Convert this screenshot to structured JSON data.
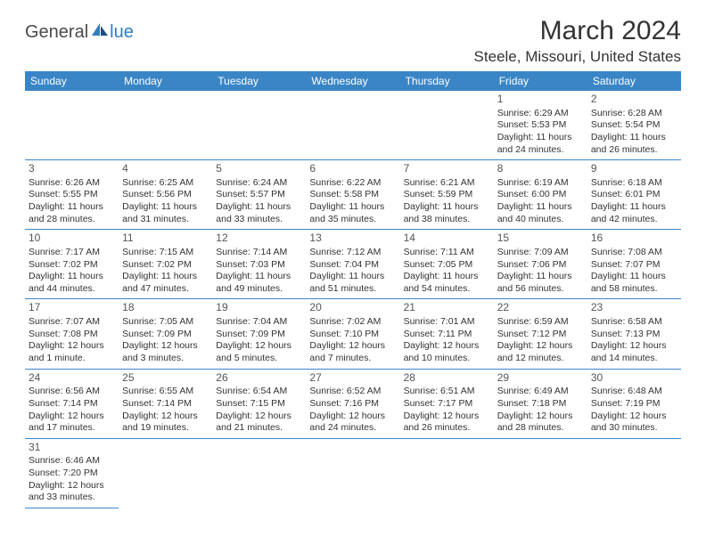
{
  "logo": {
    "part1": "General",
    "part2": "lue"
  },
  "title": "March 2024",
  "location": "Steele, Missouri, United States",
  "colors": {
    "header_bg": "#3a85c6",
    "header_fg": "#ffffff",
    "accent": "#2f7ec0",
    "text": "#333333",
    "border": "#3a85c6"
  },
  "weekdays": [
    "Sunday",
    "Monday",
    "Tuesday",
    "Wednesday",
    "Thursday",
    "Friday",
    "Saturday"
  ],
  "weeks": [
    [
      null,
      null,
      null,
      null,
      null,
      {
        "n": "1",
        "sr": "Sunrise: 6:29 AM",
        "ss": "Sunset: 5:53 PM",
        "d1": "Daylight: 11 hours",
        "d2": "and 24 minutes."
      },
      {
        "n": "2",
        "sr": "Sunrise: 6:28 AM",
        "ss": "Sunset: 5:54 PM",
        "d1": "Daylight: 11 hours",
        "d2": "and 26 minutes."
      }
    ],
    [
      {
        "n": "3",
        "sr": "Sunrise: 6:26 AM",
        "ss": "Sunset: 5:55 PM",
        "d1": "Daylight: 11 hours",
        "d2": "and 28 minutes."
      },
      {
        "n": "4",
        "sr": "Sunrise: 6:25 AM",
        "ss": "Sunset: 5:56 PM",
        "d1": "Daylight: 11 hours",
        "d2": "and 31 minutes."
      },
      {
        "n": "5",
        "sr": "Sunrise: 6:24 AM",
        "ss": "Sunset: 5:57 PM",
        "d1": "Daylight: 11 hours",
        "d2": "and 33 minutes."
      },
      {
        "n": "6",
        "sr": "Sunrise: 6:22 AM",
        "ss": "Sunset: 5:58 PM",
        "d1": "Daylight: 11 hours",
        "d2": "and 35 minutes."
      },
      {
        "n": "7",
        "sr": "Sunrise: 6:21 AM",
        "ss": "Sunset: 5:59 PM",
        "d1": "Daylight: 11 hours",
        "d2": "and 38 minutes."
      },
      {
        "n": "8",
        "sr": "Sunrise: 6:19 AM",
        "ss": "Sunset: 6:00 PM",
        "d1": "Daylight: 11 hours",
        "d2": "and 40 minutes."
      },
      {
        "n": "9",
        "sr": "Sunrise: 6:18 AM",
        "ss": "Sunset: 6:01 PM",
        "d1": "Daylight: 11 hours",
        "d2": "and 42 minutes."
      }
    ],
    [
      {
        "n": "10",
        "sr": "Sunrise: 7:17 AM",
        "ss": "Sunset: 7:02 PM",
        "d1": "Daylight: 11 hours",
        "d2": "and 44 minutes."
      },
      {
        "n": "11",
        "sr": "Sunrise: 7:15 AM",
        "ss": "Sunset: 7:02 PM",
        "d1": "Daylight: 11 hours",
        "d2": "and 47 minutes."
      },
      {
        "n": "12",
        "sr": "Sunrise: 7:14 AM",
        "ss": "Sunset: 7:03 PM",
        "d1": "Daylight: 11 hours",
        "d2": "and 49 minutes."
      },
      {
        "n": "13",
        "sr": "Sunrise: 7:12 AM",
        "ss": "Sunset: 7:04 PM",
        "d1": "Daylight: 11 hours",
        "d2": "and 51 minutes."
      },
      {
        "n": "14",
        "sr": "Sunrise: 7:11 AM",
        "ss": "Sunset: 7:05 PM",
        "d1": "Daylight: 11 hours",
        "d2": "and 54 minutes."
      },
      {
        "n": "15",
        "sr": "Sunrise: 7:09 AM",
        "ss": "Sunset: 7:06 PM",
        "d1": "Daylight: 11 hours",
        "d2": "and 56 minutes."
      },
      {
        "n": "16",
        "sr": "Sunrise: 7:08 AM",
        "ss": "Sunset: 7:07 PM",
        "d1": "Daylight: 11 hours",
        "d2": "and 58 minutes."
      }
    ],
    [
      {
        "n": "17",
        "sr": "Sunrise: 7:07 AM",
        "ss": "Sunset: 7:08 PM",
        "d1": "Daylight: 12 hours",
        "d2": "and 1 minute."
      },
      {
        "n": "18",
        "sr": "Sunrise: 7:05 AM",
        "ss": "Sunset: 7:09 PM",
        "d1": "Daylight: 12 hours",
        "d2": "and 3 minutes."
      },
      {
        "n": "19",
        "sr": "Sunrise: 7:04 AM",
        "ss": "Sunset: 7:09 PM",
        "d1": "Daylight: 12 hours",
        "d2": "and 5 minutes."
      },
      {
        "n": "20",
        "sr": "Sunrise: 7:02 AM",
        "ss": "Sunset: 7:10 PM",
        "d1": "Daylight: 12 hours",
        "d2": "and 7 minutes."
      },
      {
        "n": "21",
        "sr": "Sunrise: 7:01 AM",
        "ss": "Sunset: 7:11 PM",
        "d1": "Daylight: 12 hours",
        "d2": "and 10 minutes."
      },
      {
        "n": "22",
        "sr": "Sunrise: 6:59 AM",
        "ss": "Sunset: 7:12 PM",
        "d1": "Daylight: 12 hours",
        "d2": "and 12 minutes."
      },
      {
        "n": "23",
        "sr": "Sunrise: 6:58 AM",
        "ss": "Sunset: 7:13 PM",
        "d1": "Daylight: 12 hours",
        "d2": "and 14 minutes."
      }
    ],
    [
      {
        "n": "24",
        "sr": "Sunrise: 6:56 AM",
        "ss": "Sunset: 7:14 PM",
        "d1": "Daylight: 12 hours",
        "d2": "and 17 minutes."
      },
      {
        "n": "25",
        "sr": "Sunrise: 6:55 AM",
        "ss": "Sunset: 7:14 PM",
        "d1": "Daylight: 12 hours",
        "d2": "and 19 minutes."
      },
      {
        "n": "26",
        "sr": "Sunrise: 6:54 AM",
        "ss": "Sunset: 7:15 PM",
        "d1": "Daylight: 12 hours",
        "d2": "and 21 minutes."
      },
      {
        "n": "27",
        "sr": "Sunrise: 6:52 AM",
        "ss": "Sunset: 7:16 PM",
        "d1": "Daylight: 12 hours",
        "d2": "and 24 minutes."
      },
      {
        "n": "28",
        "sr": "Sunrise: 6:51 AM",
        "ss": "Sunset: 7:17 PM",
        "d1": "Daylight: 12 hours",
        "d2": "and 26 minutes."
      },
      {
        "n": "29",
        "sr": "Sunrise: 6:49 AM",
        "ss": "Sunset: 7:18 PM",
        "d1": "Daylight: 12 hours",
        "d2": "and 28 minutes."
      },
      {
        "n": "30",
        "sr": "Sunrise: 6:48 AM",
        "ss": "Sunset: 7:19 PM",
        "d1": "Daylight: 12 hours",
        "d2": "and 30 minutes."
      }
    ],
    [
      {
        "n": "31",
        "sr": "Sunrise: 6:46 AM",
        "ss": "Sunset: 7:20 PM",
        "d1": "Daylight: 12 hours",
        "d2": "and 33 minutes."
      },
      null,
      null,
      null,
      null,
      null,
      null
    ]
  ]
}
